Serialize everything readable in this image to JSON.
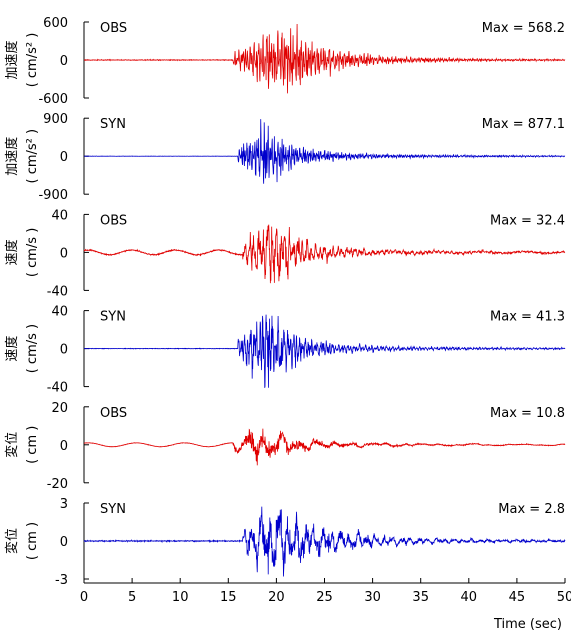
{
  "chart_data": [
    {
      "type": "line",
      "kind": "OBS",
      "label": "OBS",
      "max_label": "Max = 568.2",
      "ylabel_main": "加速度",
      "ylabel_unit": "( cm/s² )",
      "ylim": [
        -600,
        600
      ],
      "yticks": [
        "600",
        "0",
        "-600"
      ],
      "ytick_values": [
        600,
        0,
        -600
      ],
      "color": "#e00000",
      "onset": 15.5,
      "peak_t": 21.0,
      "amp": 568.2,
      "rise": 2.0,
      "decay": 3.5,
      "noise": 0.05,
      "freq": 4.5,
      "pre": 0,
      "pre_freq": 0.2,
      "seed": 11
    },
    {
      "type": "line",
      "kind": "SYN",
      "label": "SYN",
      "max_label": "Max = 877.1",
      "ylabel_main": "加速度",
      "ylabel_unit": "( cm/s² )",
      "ylim": [
        -900,
        900
      ],
      "yticks": [
        "900",
        "0",
        "-900"
      ],
      "ytick_values": [
        900,
        0,
        -900
      ],
      "color": "#0000cc",
      "onset": 16.0,
      "peak_t": 18.6,
      "amp": 877.1,
      "rise": 1.3,
      "decay": 2.8,
      "noise": 0.02,
      "freq": 5.0,
      "pre": 0,
      "pre_freq": 0.2,
      "seed": 23
    },
    {
      "type": "line",
      "kind": "OBS",
      "label": "OBS",
      "max_label": "Max = 32.4",
      "ylabel_main": "速度",
      "ylabel_unit": "( cm/s )",
      "ylim": [
        -40,
        40
      ],
      "yticks": [
        "40",
        "0",
        "-40"
      ],
      "ytick_values": [
        40,
        0,
        -40
      ],
      "color": "#e00000",
      "onset": 16.5,
      "peak_t": 19.5,
      "amp": 32.4,
      "rise": 1.5,
      "decay": 3.0,
      "noise": 0.07,
      "freq": 2.2,
      "pre": 3.0,
      "pre_freq": 0.22,
      "seed": 37
    },
    {
      "type": "line",
      "kind": "SYN",
      "label": "SYN",
      "max_label": "Max = 41.3",
      "ylabel_main": "速度",
      "ylabel_unit": "( cm/s )",
      "ylim": [
        -40,
        40
      ],
      "yticks": [
        "40",
        "0",
        "-40"
      ],
      "ytick_values": [
        40,
        0,
        -40
      ],
      "color": "#0000cc",
      "onset": 16.0,
      "peak_t": 19.0,
      "amp": 41.3,
      "rise": 1.5,
      "decay": 2.8,
      "noise": 0.03,
      "freq": 3.2,
      "pre": 0,
      "pre_freq": 0.2,
      "seed": 41
    },
    {
      "type": "line",
      "kind": "OBS",
      "label": "OBS",
      "max_label": "Max = 10.8",
      "ylabel_main": "変位",
      "ylabel_unit": "( cm )",
      "ylim": [
        -20,
        20
      ],
      "yticks": [
        "20",
        "0",
        "-20"
      ],
      "ytick_values": [
        20,
        0,
        -20
      ],
      "color": "#e00000",
      "onset": 15.5,
      "peak_t": 17.8,
      "amp": 10.8,
      "rise": 1.5,
      "decay": 4.0,
      "noise": 0.05,
      "freq": 0.55,
      "pre": 1.5,
      "pre_freq": 0.2,
      "seed": 53
    },
    {
      "type": "line",
      "kind": "SYN",
      "label": "SYN",
      "max_label": "Max = 2.8",
      "ylabel_main": "変位",
      "ylabel_unit": "( cm )",
      "ylim": [
        -3,
        3
      ],
      "yticks": [
        "3",
        "0",
        "-3"
      ],
      "ytick_values": [
        3,
        0,
        -3
      ],
      "color": "#0000cc",
      "onset": 16.5,
      "peak_t": 19.0,
      "amp": 2.8,
      "rise": 1.0,
      "decay": 5.0,
      "noise": 0.06,
      "freq": 1.1,
      "pre": 0,
      "pre_freq": 0.2,
      "seed": 67
    }
  ],
  "x_axis": {
    "label": "Time (sec)",
    "xlim": [
      0,
      50
    ],
    "ticks": [
      0,
      5,
      10,
      15,
      20,
      25,
      30,
      35,
      40,
      45,
      50
    ],
    "tick_labels": [
      "0",
      "5",
      "10",
      "15",
      "20",
      "25",
      "30",
      "35",
      "40",
      "45",
      "50"
    ]
  }
}
